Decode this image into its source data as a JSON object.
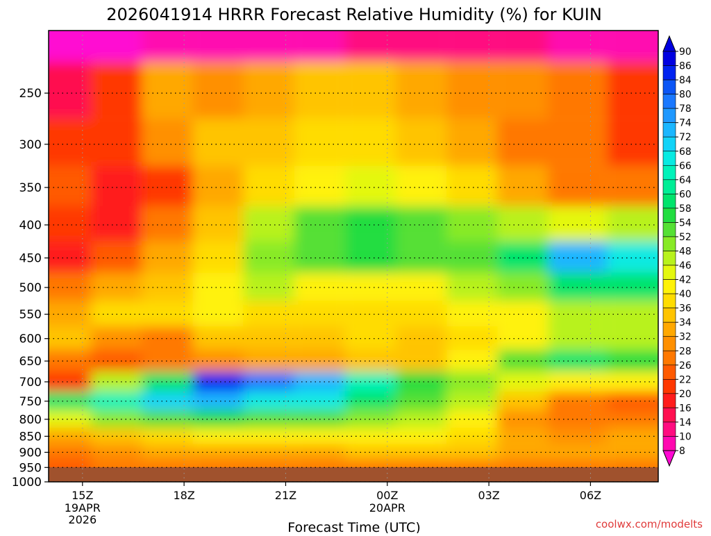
{
  "chart_data": {
    "type": "heatmap",
    "title": "2026041914 HRRR Forecast Relative Humidity (%) for KUIN",
    "xlabel": "Forecast Time (UTC)",
    "ylabel": "",
    "credit": "coolwx.com/modelts",
    "x_ticks": [
      {
        "label": "15Z",
        "hours": 15,
        "sub": [
          "19APR",
          "2026"
        ]
      },
      {
        "label": "18Z",
        "hours": 18,
        "sub": []
      },
      {
        "label": "21Z",
        "hours": 21,
        "sub": []
      },
      {
        "label": "00Z",
        "hours": 24,
        "sub": [
          "20APR"
        ]
      },
      {
        "label": "03Z",
        "hours": 27,
        "sub": []
      },
      {
        "label": "06Z",
        "hours": 30,
        "sub": []
      }
    ],
    "xlim_hours": [
      14,
      32
    ],
    "y_ticks": [
      250,
      300,
      350,
      400,
      450,
      500,
      550,
      600,
      650,
      700,
      750,
      800,
      850,
      900,
      950,
      1000
    ],
    "ylim_hpa": [
      200,
      1000
    ],
    "y_scale": "log-pressure",
    "colorbar": {
      "labels": [
        90,
        86,
        84,
        80,
        78,
        74,
        72,
        68,
        66,
        64,
        60,
        58,
        54,
        52,
        48,
        46,
        42,
        40,
        36,
        34,
        32,
        28,
        26,
        22,
        20,
        16,
        14,
        10,
        8
      ],
      "colors": [
        "#0000e0",
        "#0022f0",
        "#0b55f5",
        "#1a78ff",
        "#1f98ff",
        "#1ab6ff",
        "#12d3f8",
        "#08eae2",
        "#00f2ba",
        "#00ee96",
        "#00e46c",
        "#22dd40",
        "#55e034",
        "#88ea26",
        "#b8f21c",
        "#e4f810",
        "#fff208",
        "#ffdc00",
        "#ffc400",
        "#ffa800",
        "#ff9000",
        "#ff7800",
        "#ff5a00",
        "#ff3800",
        "#ff1c1c",
        "#ff1050",
        "#ff0c80",
        "#ff08b0",
        "#ff08d2"
      ]
    },
    "ground_color": "#a0522d",
    "grid": true,
    "series": [
      {
        "time_hours": 14.5,
        "rh": [
          8,
          16,
          22,
          26,
          22,
          20,
          28,
          34,
          36,
          30,
          22,
          60,
          46,
          34,
          28,
          26
        ]
      },
      {
        "time_hours": 16,
        "rh": [
          8,
          22,
          24,
          20,
          20,
          26,
          34,
          40,
          32,
          26,
          48,
          66,
          52,
          38,
          32,
          28
        ]
      },
      {
        "time_hours": 17.5,
        "rh": [
          10,
          34,
          32,
          24,
          28,
          34,
          36,
          40,
          30,
          28,
          62,
          72,
          56,
          40,
          34,
          28
        ]
      },
      {
        "time_hours": 19,
        "rh": [
          10,
          32,
          36,
          34,
          36,
          40,
          44,
          42,
          36,
          32,
          86,
          74,
          58,
          42,
          34,
          28
        ]
      },
      {
        "time_hours": 20.5,
        "rh": [
          12,
          34,
          36,
          40,
          50,
          52,
          48,
          40,
          38,
          34,
          80,
          68,
          56,
          42,
          34,
          28
        ]
      },
      {
        "time_hours": 22,
        "rh": [
          12,
          36,
          40,
          42,
          56,
          54,
          42,
          40,
          38,
          34,
          74,
          68,
          54,
          42,
          34,
          28
        ]
      },
      {
        "time_hours": 23.5,
        "rh": [
          14,
          38,
          40,
          46,
          58,
          58,
          42,
          40,
          40,
          36,
          66,
          62,
          52,
          42,
          36,
          30
        ]
      },
      {
        "time_hours": 25,
        "rh": [
          14,
          34,
          38,
          44,
          56,
          56,
          44,
          40,
          36,
          36,
          58,
          56,
          50,
          42,
          36,
          30
        ]
      },
      {
        "time_hours": 26.5,
        "rh": [
          14,
          32,
          34,
          40,
          52,
          54,
          48,
          44,
          40,
          44,
          52,
          48,
          42,
          40,
          36,
          30
        ]
      },
      {
        "time_hours": 28,
        "rh": [
          14,
          32,
          30,
          34,
          48,
          60,
          52,
          44,
          44,
          56,
          46,
          36,
          32,
          34,
          34,
          30
        ]
      },
      {
        "time_hours": 29.5,
        "rh": [
          12,
          30,
          28,
          30,
          46,
          74,
          60,
          48,
          50,
          60,
          42,
          30,
          28,
          32,
          34,
          30
        ]
      },
      {
        "time_hours": 31.5,
        "rh": [
          12,
          24,
          22,
          30,
          50,
          70,
          62,
          50,
          50,
          58,
          42,
          26,
          28,
          34,
          34,
          30
        ]
      }
    ]
  }
}
